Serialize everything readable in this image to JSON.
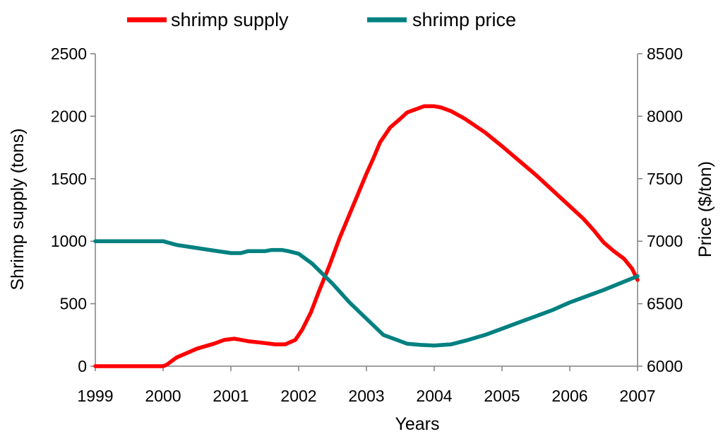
{
  "chart_data": {
    "type": "line",
    "title": "",
    "xlabel": "Years",
    "ylabel_left": "Shrimp supply (tons)",
    "ylabel_right": "Price ($/ton)",
    "xlim": [
      1999,
      2007
    ],
    "ylim_left": [
      0,
      2500
    ],
    "ylim_right": [
      6000,
      8500
    ],
    "x_ticks": [
      1999,
      2000,
      2001,
      2002,
      2003,
      2004,
      2005,
      2006,
      2007
    ],
    "y_left_ticks": [
      0,
      500,
      1000,
      1500,
      2000,
      2500
    ],
    "y_right_ticks": [
      6000,
      6500,
      7000,
      7500,
      8000,
      8500
    ],
    "grid": false,
    "legend_position": "top",
    "series": [
      {
        "name": "shrimp supply",
        "axis": "left",
        "color": "#ff0000",
        "x": [
          1999,
          1999.5,
          2000,
          2000.05,
          2000.2,
          2000.5,
          2000.75,
          2000.9,
          2001.05,
          2001.25,
          2001.5,
          2001.65,
          2001.8,
          2001.95,
          2002.05,
          2002.18,
          2002.3,
          2002.45,
          2002.6,
          2002.8,
          2003,
          2003.1,
          2003.2,
          2003.35,
          2003.5,
          2003.6,
          2003.7,
          2003.85,
          2004,
          2004.1,
          2004.25,
          2004.45,
          2004.75,
          2005,
          2005.5,
          2006,
          2006.2,
          2006.35,
          2006.5,
          2006.65,
          2006.8,
          2006.92,
          2007
        ],
        "values": [
          0,
          0,
          0,
          10,
          70,
          140,
          180,
          210,
          220,
          200,
          185,
          175,
          175,
          210,
          290,
          430,
          600,
          800,
          1020,
          1280,
          1540,
          1660,
          1790,
          1910,
          1980,
          2030,
          2050,
          2080,
          2080,
          2070,
          2040,
          1980,
          1870,
          1760,
          1530,
          1280,
          1180,
          1090,
          990,
          920,
          860,
          780,
          690
        ]
      },
      {
        "name": "shrimp price",
        "axis": "right",
        "color": "#008080",
        "x": [
          1999,
          1999.5,
          2000,
          2000.2,
          2000.5,
          2000.75,
          2001,
          2001.15,
          2001.25,
          2001.5,
          2001.6,
          2001.75,
          2001.85,
          2002,
          2002.2,
          2002.5,
          2002.75,
          2003,
          2003.25,
          2003.6,
          2003.8,
          2004,
          2004.25,
          2004.5,
          2004.75,
          2005,
          2005.25,
          2005.5,
          2005.75,
          2006,
          2006.25,
          2006.5,
          2006.75,
          2007
        ],
        "values": [
          7000,
          7000,
          7000,
          6970,
          6945,
          6925,
          6905,
          6905,
          6920,
          6920,
          6930,
          6930,
          6920,
          6900,
          6820,
          6660,
          6510,
          6380,
          6250,
          6180,
          6170,
          6165,
          6175,
          6210,
          6250,
          6300,
          6350,
          6400,
          6450,
          6510,
          6560,
          6610,
          6665,
          6720
        ]
      }
    ]
  }
}
